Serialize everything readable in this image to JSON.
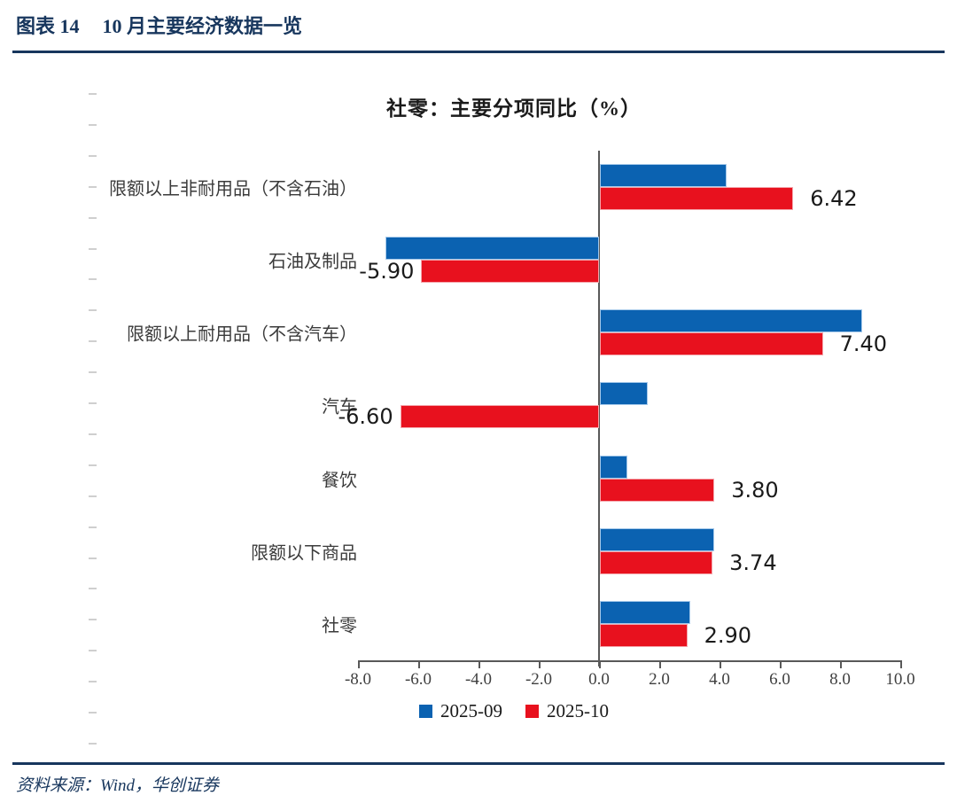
{
  "header": {
    "figure_label": "图表 14",
    "title": "10 月主要经济数据一览"
  },
  "footer": {
    "source": "资料来源：Wind，华创证券"
  },
  "colors": {
    "navy": "#17365D",
    "series_blue": "#0B62B1",
    "series_red": "#E8111E",
    "axis": "#595959",
    "tick_label": "#404040",
    "minor_tick": "#CFCFCF"
  },
  "chart_data": {
    "type": "bar",
    "orientation": "horizontal",
    "title": "社零：主要分项同比（%）",
    "categories": [
      "限额以上非耐用品（不含石油）",
      "石油及制品",
      "限额以上耐用品（不含汽车）",
      "汽车",
      "餐饮",
      "限额以下商品",
      "社零"
    ],
    "series": [
      {
        "name": "2025-09",
        "color": "#0B62B1",
        "values": [
          4.2,
          -7.1,
          8.7,
          1.6,
          0.9,
          3.8,
          3.0
        ]
      },
      {
        "name": "2025-10",
        "color": "#E8111E",
        "values": [
          6.42,
          -5.9,
          7.4,
          -6.6,
          3.8,
          3.74,
          2.9
        ],
        "labels": [
          "6.42",
          "-5.90",
          "7.40",
          "-6.60",
          "3.80",
          "3.74",
          "2.90"
        ]
      }
    ],
    "value_labels_on": "2025-10",
    "xlim": [
      -8,
      10
    ],
    "x_ticks": [
      "-8.0",
      "-6.0",
      "-4.0",
      "-2.0",
      "0.0",
      "2.0",
      "4.0",
      "6.0",
      "8.0",
      "10.0"
    ],
    "grid": false,
    "legend_position": "bottom"
  }
}
